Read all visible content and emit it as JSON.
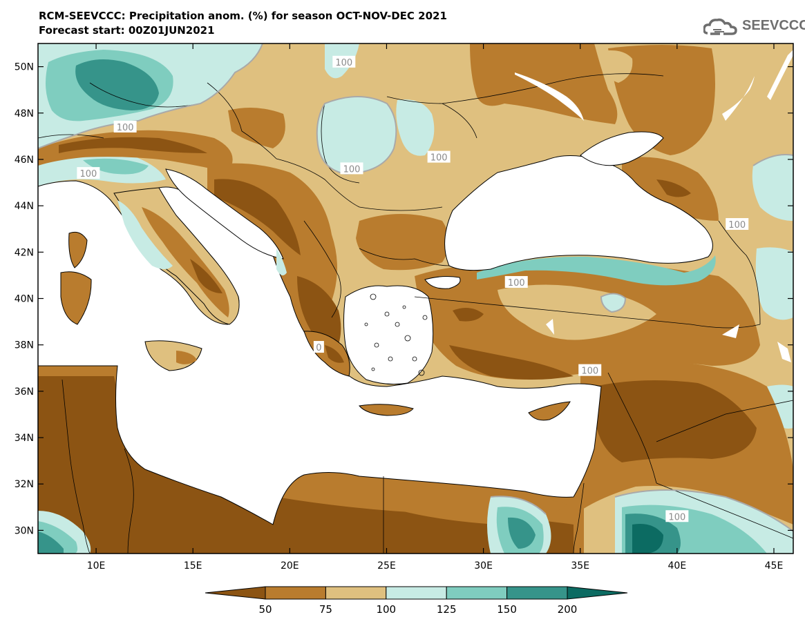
{
  "header": {
    "title_line1": "RCM-SEEVCCC: Precipitation anom. (%) for season OCT-NOV-DEC 2021",
    "title_line2": "Forecast start: 00Z01JUN2021",
    "logo_text": "SEEVCCC"
  },
  "chart_data": {
    "type": "map",
    "variable": "Precipitation anomaly",
    "units": "%",
    "x_axis": {
      "min": 7,
      "max": 46,
      "ticks": [
        10,
        15,
        20,
        25,
        30,
        35,
        40,
        45
      ],
      "tick_labels": [
        "10E",
        "15E",
        "20E",
        "25E",
        "30E",
        "35E",
        "40E",
        "45E"
      ]
    },
    "y_axis": {
      "min": 29,
      "max": 51,
      "ticks": [
        30,
        32,
        34,
        36,
        38,
        40,
        42,
        44,
        46,
        48,
        50
      ],
      "tick_labels": [
        "30N",
        "32N",
        "34N",
        "36N",
        "38N",
        "40N",
        "42N",
        "44N",
        "46N",
        "48N",
        "50N"
      ]
    },
    "colorbar": {
      "levels": [
        "50",
        "75",
        "100",
        "125",
        "150",
        "200"
      ],
      "colors": [
        "#8c5413",
        "#b97c2e",
        "#dfc07f",
        "#c7ebe4",
        "#7fcdbf",
        "#36948a",
        "#0c6b62"
      ]
    },
    "contour_labels": [
      {
        "text": "100",
        "lon": 22.8,
        "lat": 50.2
      },
      {
        "text": "100",
        "lon": 11.5,
        "lat": 47.4
      },
      {
        "text": "100",
        "lon": 9.6,
        "lat": 45.4
      },
      {
        "text": "100",
        "lon": 23.2,
        "lat": 45.6
      },
      {
        "text": "100",
        "lon": 27.7,
        "lat": 46.1
      },
      {
        "text": "100",
        "lon": 43.1,
        "lat": 43.2
      },
      {
        "text": "100",
        "lon": 31.7,
        "lat": 40.7
      },
      {
        "text": "100",
        "lon": 35.5,
        "lat": 36.9
      },
      {
        "text": "100",
        "lon": 40.0,
        "lat": 30.6
      },
      {
        "text": "0",
        "lon": 21.5,
        "lat": 37.9
      }
    ]
  }
}
